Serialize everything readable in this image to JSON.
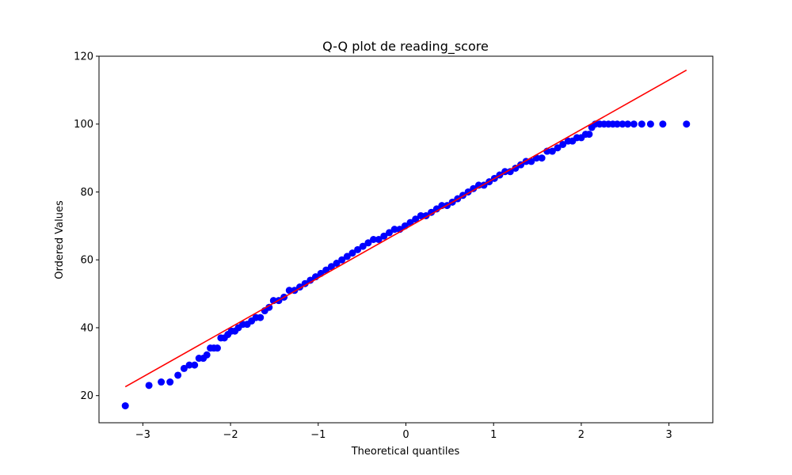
{
  "chart_data": {
    "type": "scatter",
    "title": "Q-Q plot de reading_score",
    "xlabel": "Theoretical quantiles",
    "ylabel": "Ordered Values",
    "xlim": [
      -3.5,
      3.5
    ],
    "ylim": [
      12,
      120
    ],
    "x_ticks": [
      -3,
      -2,
      -1,
      0,
      1,
      2,
      3
    ],
    "y_ticks": [
      20,
      40,
      60,
      80,
      100,
      120
    ],
    "x_tick_labels": [
      "−3",
      "−2",
      "−1",
      "0",
      "1",
      "2",
      "3"
    ],
    "y_tick_labels": [
      "20",
      "40",
      "60",
      "80",
      "100",
      "120"
    ],
    "grid": false,
    "series": [
      {
        "kind": "points",
        "color": "#0000ff",
        "points": [
          [
            -3.2,
            17
          ],
          [
            -2.93,
            23
          ],
          [
            -2.79,
            24
          ],
          [
            -2.69,
            24
          ],
          [
            -2.6,
            26
          ],
          [
            -2.53,
            28
          ],
          [
            -2.47,
            29
          ],
          [
            -2.41,
            29
          ],
          [
            -2.36,
            31
          ],
          [
            -2.31,
            31
          ],
          [
            -2.27,
            32
          ],
          [
            -2.23,
            34
          ],
          [
            -2.19,
            34
          ],
          [
            -2.15,
            34
          ],
          [
            -2.11,
            37
          ],
          [
            -2.07,
            37
          ],
          [
            -2.03,
            38
          ],
          [
            -1.99,
            39
          ],
          [
            -1.95,
            39
          ],
          [
            -1.91,
            40
          ],
          [
            -1.86,
            41
          ],
          [
            -1.81,
            41
          ],
          [
            -1.76,
            42
          ],
          [
            -1.71,
            43
          ],
          [
            -1.66,
            43
          ],
          [
            -1.61,
            45
          ],
          [
            -1.56,
            46
          ],
          [
            -1.51,
            48
          ],
          [
            -1.45,
            48
          ],
          [
            -1.39,
            49
          ],
          [
            -1.33,
            51
          ],
          [
            -1.27,
            51
          ],
          [
            -1.21,
            52
          ],
          [
            -1.15,
            53
          ],
          [
            -1.09,
            54
          ],
          [
            -1.03,
            55
          ],
          [
            -0.97,
            56
          ],
          [
            -0.91,
            57
          ],
          [
            -0.85,
            58
          ],
          [
            -0.79,
            59
          ],
          [
            -0.73,
            60
          ],
          [
            -0.67,
            61
          ],
          [
            -0.61,
            62
          ],
          [
            -0.55,
            63
          ],
          [
            -0.49,
            64
          ],
          [
            -0.43,
            65
          ],
          [
            -0.37,
            66
          ],
          [
            -0.31,
            66
          ],
          [
            -0.25,
            67
          ],
          [
            -0.19,
            68
          ],
          [
            -0.13,
            69
          ],
          [
            -0.07,
            69
          ],
          [
            -0.01,
            70
          ],
          [
            0.05,
            71
          ],
          [
            0.11,
            72
          ],
          [
            0.17,
            73
          ],
          [
            0.23,
            73
          ],
          [
            0.29,
            74
          ],
          [
            0.35,
            75
          ],
          [
            0.41,
            76
          ],
          [
            0.47,
            76
          ],
          [
            0.53,
            77
          ],
          [
            0.59,
            78
          ],
          [
            0.65,
            79
          ],
          [
            0.71,
            80
          ],
          [
            0.77,
            81
          ],
          [
            0.83,
            82
          ],
          [
            0.89,
            82
          ],
          [
            0.95,
            83
          ],
          [
            1.01,
            84
          ],
          [
            1.07,
            85
          ],
          [
            1.13,
            86
          ],
          [
            1.19,
            86
          ],
          [
            1.25,
            87
          ],
          [
            1.31,
            88
          ],
          [
            1.37,
            89
          ],
          [
            1.43,
            89
          ],
          [
            1.49,
            90
          ],
          [
            1.55,
            90
          ],
          [
            1.61,
            92
          ],
          [
            1.67,
            92
          ],
          [
            1.73,
            93
          ],
          [
            1.79,
            94
          ],
          [
            1.85,
            95
          ],
          [
            1.9,
            95
          ],
          [
            1.95,
            96
          ],
          [
            2.0,
            96
          ],
          [
            2.05,
            97
          ],
          [
            2.09,
            97
          ],
          [
            2.12,
            99
          ],
          [
            2.16,
            100
          ],
          [
            2.21,
            100
          ],
          [
            2.26,
            100
          ],
          [
            2.31,
            100
          ],
          [
            2.36,
            100
          ],
          [
            2.41,
            100
          ],
          [
            2.47,
            100
          ],
          [
            2.53,
            100
          ],
          [
            2.6,
            100
          ],
          [
            2.69,
            100
          ],
          [
            2.79,
            100
          ],
          [
            2.93,
            100
          ],
          [
            3.2,
            100
          ]
        ]
      },
      {
        "kind": "line",
        "color": "#ff0000",
        "points": [
          [
            -3.2,
            22.6
          ],
          [
            3.2,
            115.9
          ]
        ]
      }
    ]
  }
}
